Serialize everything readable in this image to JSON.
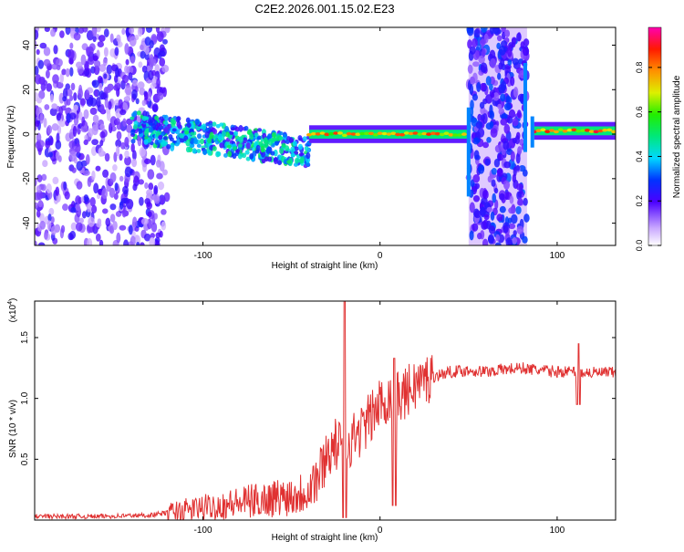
{
  "title": "C2E2.2026.001.15.02.E23",
  "chart_data": [
    {
      "type": "heatmap",
      "xlabel": "Height of straight line (km)",
      "ylabel": "Frequency (Hz)",
      "xlim": [
        -195,
        133
      ],
      "ylim": [
        -50,
        48
      ],
      "xticks": [
        -100,
        0,
        100
      ],
      "yticks": [
        -40,
        -20,
        0,
        20,
        40
      ],
      "colorbar": {
        "label": "Normalized spectral amplitude",
        "range": [
          0,
          0.98
        ],
        "ticks": [
          0.0,
          0.2,
          0.4,
          0.6,
          0.8
        ]
      },
      "features": [
        {
          "name": "broadband noise",
          "x_range": [
            -195,
            -120
          ],
          "amplitude": 0.2
        },
        {
          "name": "wandering carrier",
          "x_range": [
            -140,
            -40
          ],
          "freq_start": 3,
          "freq_end": -8,
          "amplitude": 0.45
        },
        {
          "name": "stable carrier",
          "x_range": [
            -40,
            50
          ],
          "freq": 0,
          "amplitude": 0.85
        },
        {
          "name": "disturbance band",
          "x_range": [
            50,
            83
          ],
          "amplitude": 0.25
        },
        {
          "name": "post-event carrier",
          "x_range": [
            87,
            133
          ],
          "freq": 1.5,
          "amplitude": 0.9
        }
      ]
    },
    {
      "type": "line",
      "xlabel": "Height of straight line (km)",
      "ylabel": "SNR (10 * v/v)",
      "scale_label": "(x10",
      "scale_exp": "4",
      "xlim": [
        -195,
        133
      ],
      "ylim": [
        0,
        1.8
      ],
      "xticks": [
        -100,
        0,
        100
      ],
      "yticks": [
        0.5,
        1.0,
        1.5
      ],
      "ytick_labels": [
        "0.5",
        "1.0",
        "1.5"
      ],
      "series": [
        {
          "name": "SNR",
          "color": "#e03131",
          "x": [
            -195,
            -160,
            -130,
            -120,
            -100,
            -80,
            -60,
            -45,
            -35,
            -30,
            -25,
            -20,
            -15,
            -10,
            -5,
            0,
            5,
            10,
            15,
            20,
            30,
            40,
            50,
            60,
            70,
            80,
            90,
            100,
            110,
            120,
            133
          ],
          "y": [
            0.03,
            0.03,
            0.04,
            0.06,
            0.1,
            0.14,
            0.18,
            0.22,
            0.35,
            0.55,
            0.62,
            0.6,
            0.68,
            0.75,
            0.85,
            0.95,
            1.02,
            1.0,
            1.05,
            1.12,
            1.18,
            1.22,
            1.23,
            1.22,
            1.24,
            1.25,
            1.23,
            1.22,
            1.22,
            1.21,
            1.21
          ]
        }
      ],
      "events": [
        {
          "x": -20,
          "peak": 1.8,
          "dip": 0.02
        },
        {
          "x": 8,
          "peak": 1.33,
          "dip": 0.12
        },
        {
          "x": 112,
          "peak": 1.45,
          "dip": 0.95
        }
      ]
    }
  ]
}
